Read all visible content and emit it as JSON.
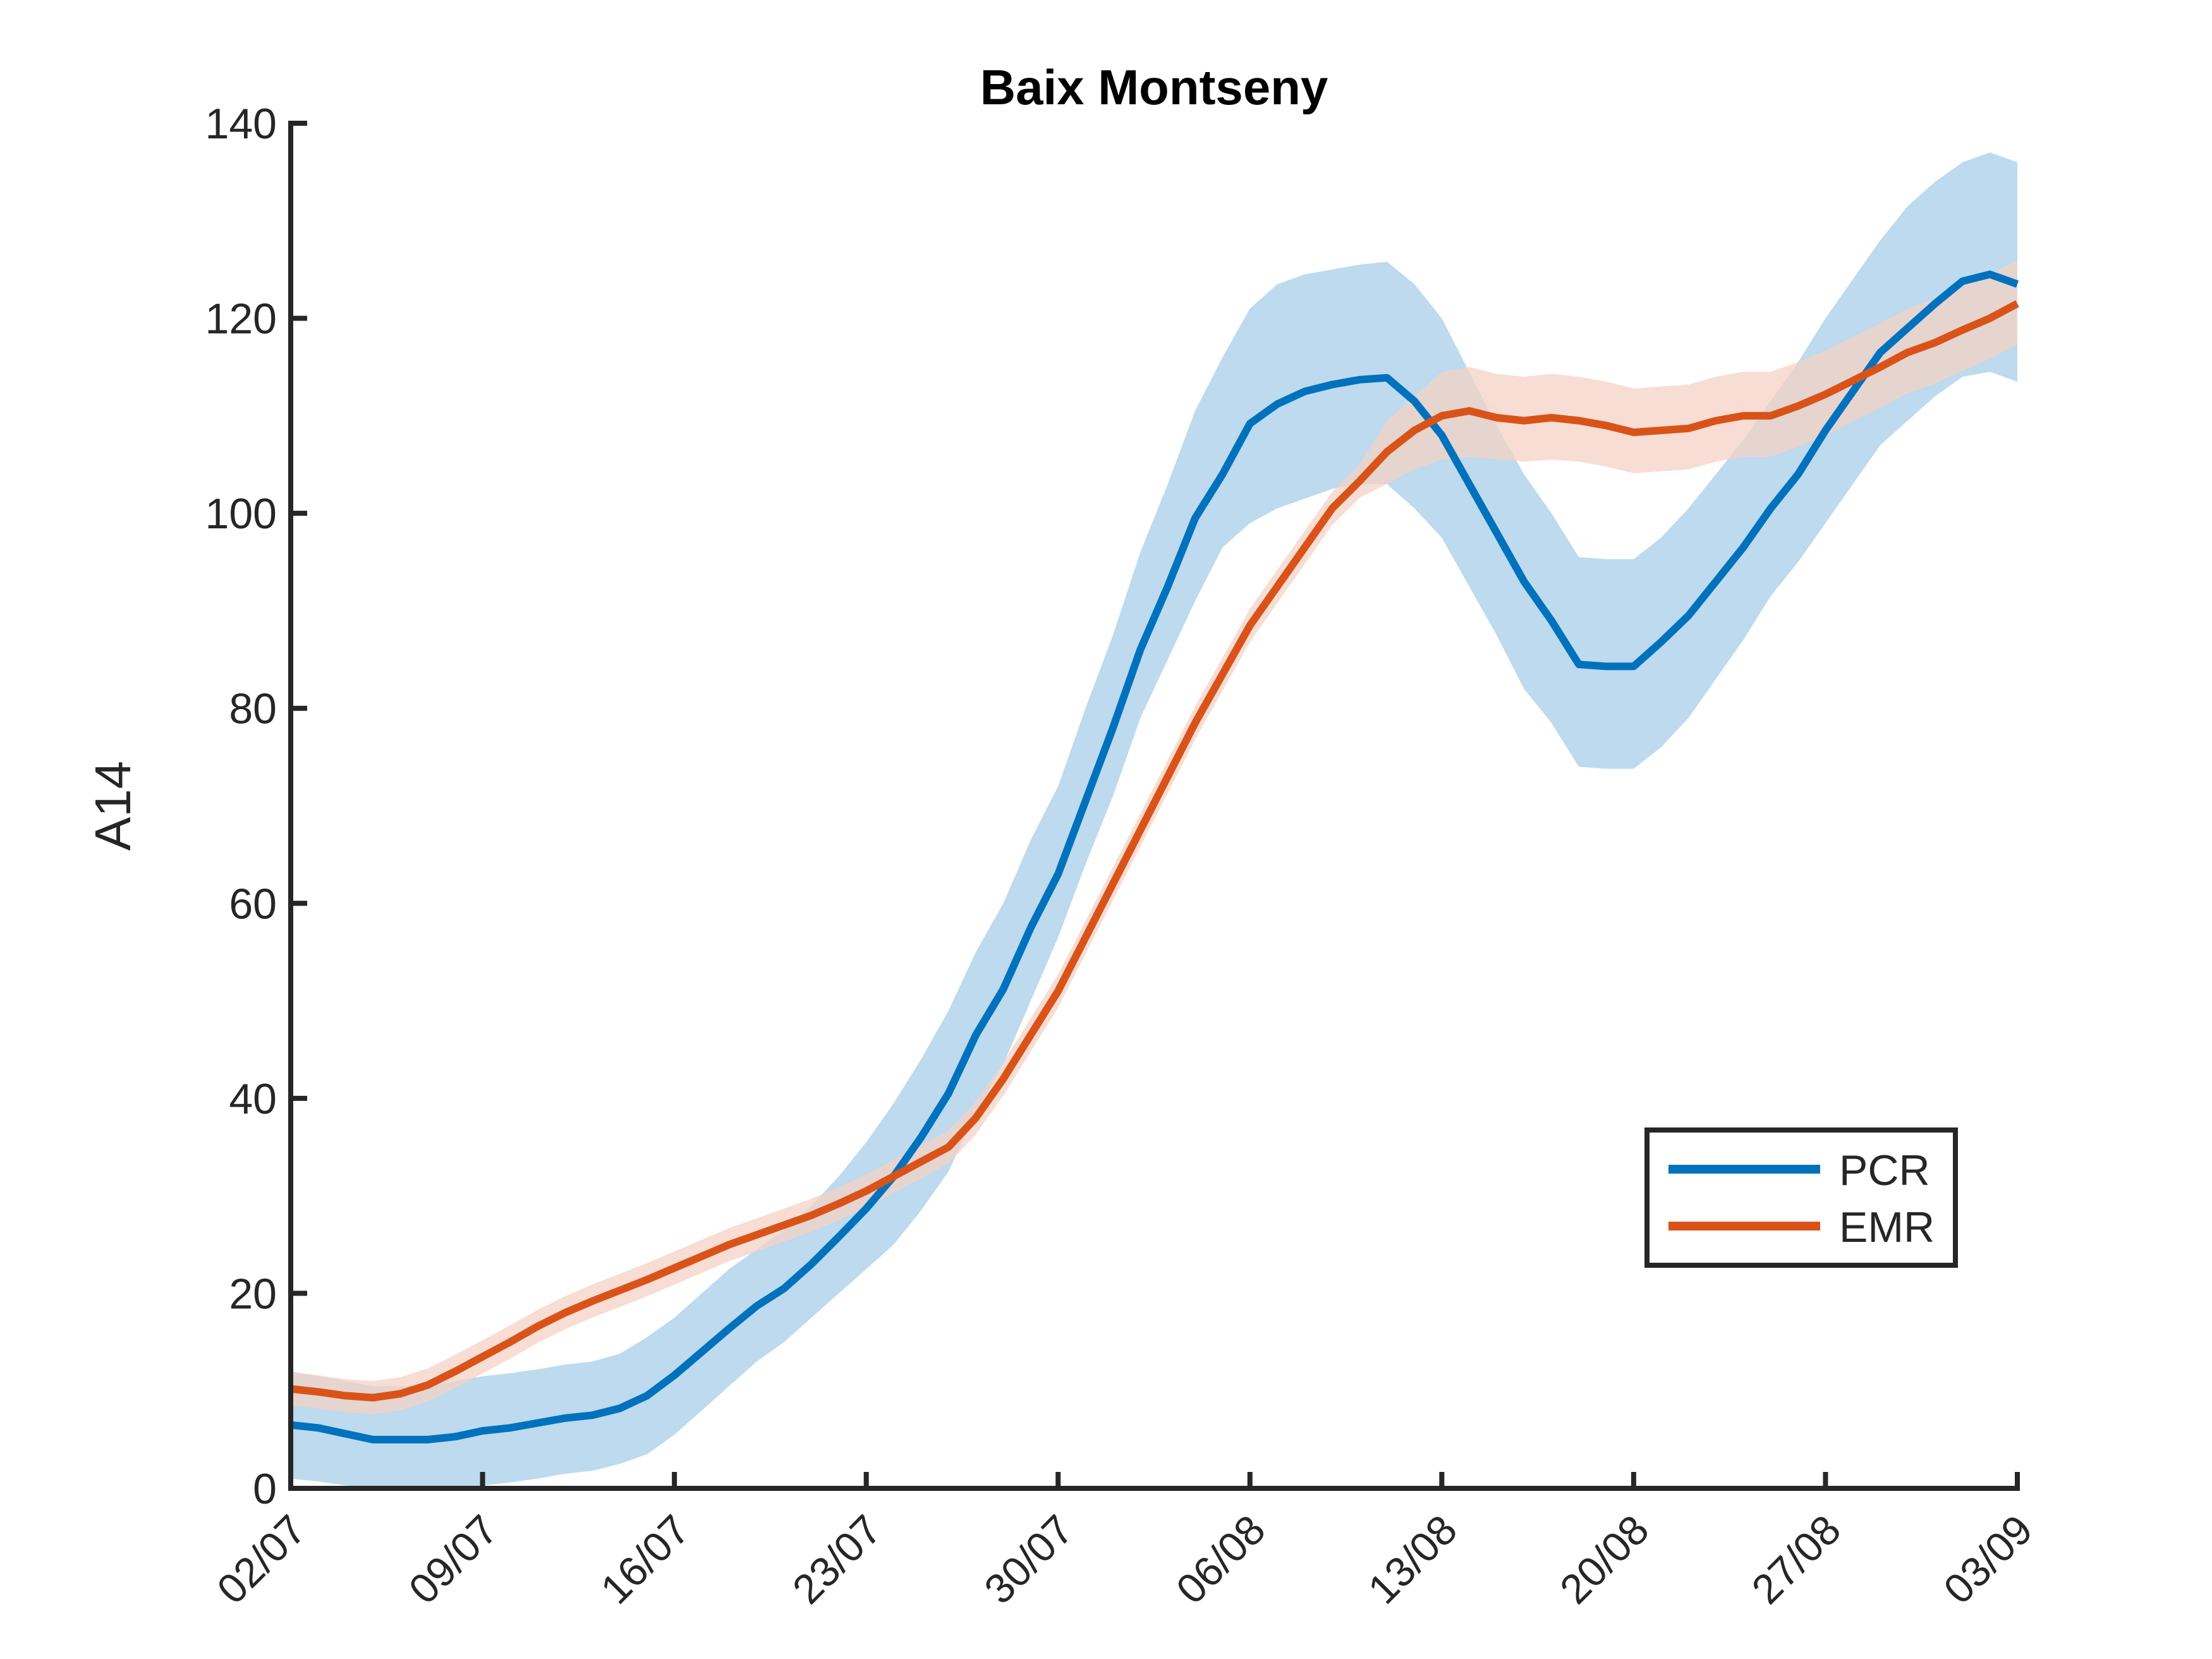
{
  "chart_data": {
    "type": "line",
    "title": "Baix Montseny",
    "xlabel": "",
    "ylabel": "A14",
    "ylim": [
      0,
      140
    ],
    "yticks": [
      0,
      20,
      40,
      60,
      80,
      100,
      120,
      140
    ],
    "x_start": "02/07",
    "x_end": "03/09",
    "xticks": [
      {
        "label": "02/07",
        "day": 0
      },
      {
        "label": "09/07",
        "day": 7
      },
      {
        "label": "16/07",
        "day": 14
      },
      {
        "label": "23/07",
        "day": 21
      },
      {
        "label": "30/07",
        "day": 28
      },
      {
        "label": "06/08",
        "day": 35
      },
      {
        "label": "13/08",
        "day": 42
      },
      {
        "label": "20/08",
        "day": 49
      },
      {
        "label": "27/08",
        "day": 56
      },
      {
        "label": "03/09",
        "day": 63
      }
    ],
    "grid": false,
    "legend_position": "bottom-right",
    "series": [
      {
        "name": "PCR",
        "color": "#0072BD",
        "band_color": "#BDDAEE",
        "x": [
          0,
          1,
          2,
          3,
          4,
          5,
          6,
          7,
          8,
          9,
          10,
          11,
          12,
          13,
          14,
          15,
          16,
          17,
          18,
          19,
          20,
          21,
          22,
          23,
          24,
          25,
          26,
          27,
          28,
          29,
          30,
          31,
          32,
          33,
          34,
          35,
          36,
          37,
          38,
          39,
          40,
          41,
          42,
          43,
          44,
          45,
          46,
          47,
          48,
          49,
          50,
          51,
          52,
          53,
          54,
          55,
          56,
          57,
          58,
          59,
          60,
          61,
          62,
          63
        ],
        "values": [
          6.5,
          6.2,
          5.6,
          5.0,
          5.0,
          5.0,
          5.3,
          5.9,
          6.2,
          6.7,
          7.2,
          7.5,
          8.2,
          9.5,
          11.6,
          14.0,
          16.4,
          18.7,
          20.5,
          23.0,
          25.8,
          28.7,
          32.0,
          36.0,
          40.5,
          46.5,
          51.2,
          57.5,
          63.0,
          70.5,
          78.0,
          86.0,
          92.5,
          99.5,
          104.0,
          109.2,
          111.2,
          112.5,
          113.2,
          113.7,
          113.9,
          111.5,
          108.0,
          103.0,
          98.0,
          93.0,
          89.0,
          84.5,
          84.3,
          84.3,
          86.8,
          89.5,
          93.0,
          96.5,
          100.5,
          104.0,
          108.5,
          112.5,
          116.5,
          119.0,
          121.5,
          123.8,
          124.5,
          123.5
        ],
        "lower": [
          1.0,
          0.7,
          0.3,
          0.0,
          0.0,
          0.0,
          0.0,
          0.3,
          0.6,
          1.0,
          1.5,
          1.8,
          2.5,
          3.5,
          5.5,
          8.0,
          10.5,
          13.0,
          15.0,
          17.5,
          20.0,
          22.5,
          25.0,
          28.5,
          32.5,
          38.5,
          43.5,
          50.0,
          56.5,
          64.0,
          71.0,
          79.0,
          85.0,
          91.0,
          96.5,
          99.0,
          100.5,
          101.5,
          102.5,
          103.0,
          103.0,
          100.5,
          97.5,
          92.5,
          87.5,
          82.0,
          78.5,
          74.0,
          73.8,
          73.8,
          76.0,
          79.0,
          83.0,
          87.0,
          91.5,
          95.0,
          99.0,
          103.0,
          107.0,
          109.5,
          112.0,
          114.0,
          114.5,
          113.5
        ],
        "upper": [
          12.0,
          11.5,
          11.0,
          10.5,
          10.5,
          10.5,
          11.0,
          11.5,
          11.8,
          12.2,
          12.7,
          13.0,
          13.8,
          15.5,
          17.5,
          20.0,
          22.5,
          24.5,
          26.5,
          29.0,
          32.0,
          35.5,
          39.5,
          44.0,
          49.0,
          55.0,
          60.0,
          66.5,
          72.0,
          80.0,
          87.5,
          96.0,
          103.0,
          110.5,
          116.0,
          121.0,
          123.5,
          124.5,
          125.0,
          125.5,
          125.8,
          123.5,
          120.0,
          114.5,
          109.0,
          104.0,
          100.0,
          95.5,
          95.3,
          95.3,
          97.5,
          100.5,
          104.0,
          107.5,
          111.5,
          115.5,
          120.0,
          124.0,
          128.0,
          131.5,
          134.0,
          136.0,
          137.0,
          136.0
        ]
      },
      {
        "name": "EMR",
        "color": "#D95319",
        "band_color": "#F4D2C4",
        "x": [
          0,
          1,
          2,
          3,
          4,
          5,
          6,
          7,
          8,
          9,
          10,
          11,
          12,
          13,
          14,
          15,
          16,
          17,
          18,
          19,
          20,
          21,
          22,
          23,
          24,
          25,
          26,
          27,
          28,
          29,
          30,
          31,
          32,
          33,
          34,
          35,
          36,
          37,
          38,
          39,
          40,
          41,
          42,
          43,
          44,
          45,
          46,
          47,
          48,
          49,
          50,
          51,
          52,
          53,
          54,
          55,
          56,
          57,
          58,
          59,
          60,
          61,
          62,
          63
        ],
        "values": [
          10.2,
          9.9,
          9.5,
          9.3,
          9.7,
          10.6,
          12.0,
          13.5,
          15.0,
          16.6,
          18.0,
          19.2,
          20.3,
          21.4,
          22.6,
          23.8,
          25.0,
          26.0,
          27.0,
          28.0,
          29.2,
          30.5,
          32.0,
          33.5,
          35.0,
          38.0,
          42.0,
          46.5,
          51.0,
          56.5,
          62.0,
          67.5,
          73.0,
          78.5,
          83.5,
          88.5,
          92.5,
          96.5,
          100.5,
          103.3,
          106.3,
          108.5,
          110.0,
          110.5,
          109.8,
          109.5,
          109.8,
          109.5,
          109.0,
          108.3,
          108.5,
          108.7,
          109.5,
          110.0,
          110.0,
          111.0,
          112.2,
          113.6,
          115.0,
          116.5,
          117.5,
          118.8,
          120.0,
          121.5
        ],
        "lower": [
          8.5,
          8.2,
          7.8,
          7.6,
          8.0,
          8.9,
          10.3,
          11.8,
          13.3,
          14.9,
          16.3,
          17.5,
          18.6,
          19.7,
          20.9,
          22.1,
          23.3,
          24.3,
          25.3,
          26.3,
          27.5,
          28.8,
          30.3,
          31.8,
          33.3,
          36.3,
          40.3,
          44.8,
          49.3,
          54.8,
          60.3,
          65.8,
          71.3,
          76.8,
          81.8,
          86.8,
          90.8,
          94.8,
          98.8,
          101.6,
          103.0,
          104.5,
          105.5,
          105.8,
          105.5,
          105.3,
          105.5,
          105.3,
          104.8,
          104.1,
          104.3,
          104.5,
          105.3,
          105.8,
          105.8,
          106.8,
          108.0,
          109.4,
          110.8,
          112.3,
          113.3,
          114.6,
          115.8,
          117.3
        ],
        "upper": [
          11.9,
          11.6,
          11.2,
          11.0,
          11.4,
          12.3,
          13.7,
          15.2,
          16.7,
          18.3,
          19.7,
          20.9,
          22.0,
          23.1,
          24.3,
          25.5,
          26.7,
          27.7,
          28.7,
          29.7,
          30.9,
          32.2,
          33.7,
          35.2,
          36.7,
          39.7,
          43.7,
          48.2,
          52.7,
          58.2,
          63.7,
          69.2,
          74.7,
          80.2,
          85.2,
          90.2,
          94.2,
          98.2,
          102.2,
          105.0,
          109.5,
          112.0,
          114.5,
          115.0,
          114.3,
          114.0,
          114.3,
          114.0,
          113.5,
          112.8,
          113.0,
          113.2,
          114.0,
          114.5,
          114.5,
          115.5,
          116.7,
          118.1,
          119.5,
          121.0,
          122.0,
          123.3,
          124.5,
          126.0
        ]
      }
    ]
  }
}
